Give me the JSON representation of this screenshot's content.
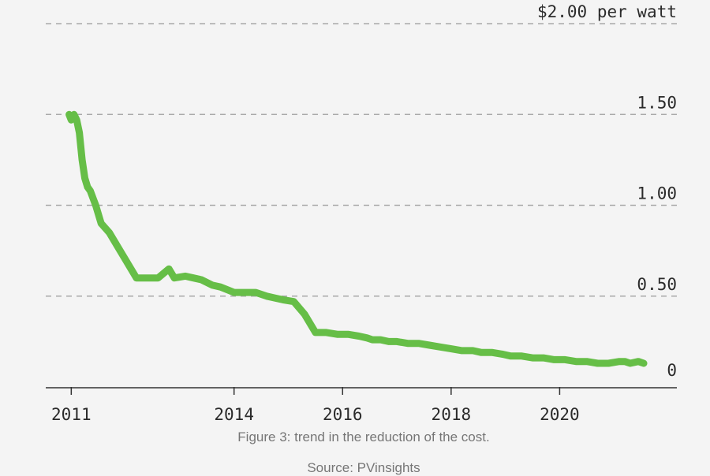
{
  "chart_data": {
    "type": "line",
    "title": "",
    "xlabel": "",
    "ylabel": "",
    "unit_label": "$2.00 per watt",
    "x_ticks": [
      {
        "value": 2011,
        "label": "2011"
      },
      {
        "value": 2014,
        "label": "2014"
      },
      {
        "value": 2016,
        "label": "2016"
      },
      {
        "value": 2018,
        "label": "2018"
      },
      {
        "value": 2020,
        "label": "2020"
      }
    ],
    "y_ticks": [
      {
        "value": 0,
        "label": "0"
      },
      {
        "value": 0.5,
        "label": "0.50"
      },
      {
        "value": 1.0,
        "label": "1.00"
      },
      {
        "value": 1.5,
        "label": "1.50"
      },
      {
        "value": 2.0,
        "label": "$2.00 per watt"
      }
    ],
    "xlim": [
      2010.53,
      2022.16
    ],
    "ylim": [
      0,
      2.0
    ],
    "grid": "horizontal dashed",
    "line_color": "#66be47",
    "series": [
      {
        "x": [
          2010.96,
          2011.0,
          2011.05,
          2011.1,
          2011.15,
          2011.2,
          2011.25,
          2011.3,
          2011.35,
          2011.45,
          2011.55,
          2011.7,
          2011.9,
          2012.0,
          2012.2,
          2012.4,
          2012.6,
          2012.8,
          2012.9,
          2013.1,
          2013.25,
          2013.4,
          2013.6,
          2013.75,
          2014.0,
          2014.2,
          2014.4,
          2014.6,
          2014.75,
          2014.9,
          2015.1,
          2015.3,
          2015.5,
          2015.7,
          2015.9,
          2016.1,
          2016.3,
          2016.45,
          2016.55,
          2016.7,
          2016.85,
          2017.0,
          2017.2,
          2017.4,
          2017.6,
          2017.8,
          2018.0,
          2018.2,
          2018.4,
          2018.55,
          2018.75,
          2018.95,
          2019.1,
          2019.3,
          2019.5,
          2019.7,
          2019.9,
          2020.1,
          2020.3,
          2020.5,
          2020.7,
          2020.9,
          2021.1,
          2021.2,
          2021.3,
          2021.45,
          2021.55
        ],
        "y": [
          1.5,
          1.47,
          1.5,
          1.47,
          1.4,
          1.25,
          1.15,
          1.1,
          1.08,
          1.0,
          0.9,
          0.85,
          0.75,
          0.7,
          0.6,
          0.6,
          0.6,
          0.65,
          0.6,
          0.61,
          0.6,
          0.59,
          0.56,
          0.55,
          0.52,
          0.52,
          0.52,
          0.5,
          0.49,
          0.48,
          0.47,
          0.4,
          0.3,
          0.3,
          0.29,
          0.29,
          0.28,
          0.27,
          0.26,
          0.26,
          0.25,
          0.25,
          0.24,
          0.24,
          0.23,
          0.22,
          0.21,
          0.2,
          0.2,
          0.19,
          0.19,
          0.18,
          0.17,
          0.17,
          0.16,
          0.16,
          0.15,
          0.15,
          0.14,
          0.14,
          0.13,
          0.13,
          0.14,
          0.14,
          0.13,
          0.14,
          0.13
        ]
      }
    ]
  },
  "caption": "Figure 3: trend in the reduction of the cost.",
  "source": "Source: PVinsights"
}
